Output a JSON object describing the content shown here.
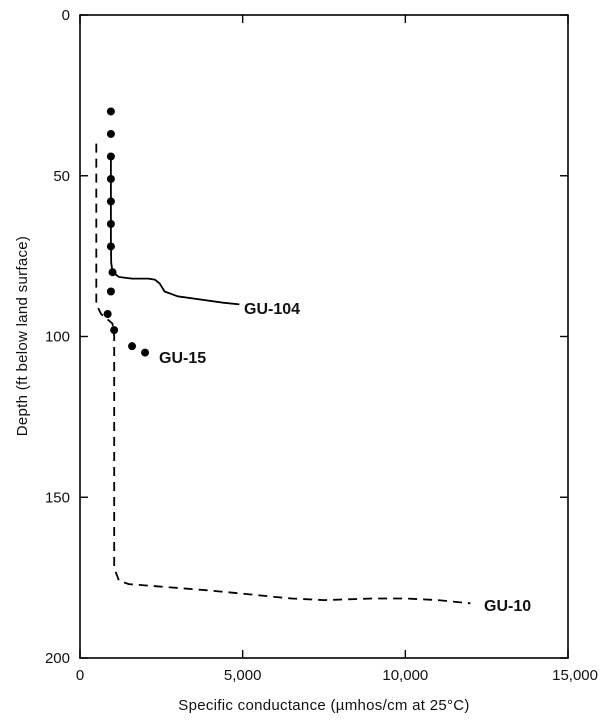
{
  "chart_data": {
    "type": "line",
    "x_axis": {
      "label": "Specific conductance (µmhos/cm at 25°C)",
      "range": [
        0,
        15000
      ],
      "ticks": [
        0,
        5000,
        10000,
        15000
      ],
      "tick_labels": [
        "0",
        "5,000",
        "10,000",
        "15,000"
      ],
      "position": "bottom"
    },
    "y_axis": {
      "label": "Depth (ft below land surface)",
      "range": [
        0,
        200
      ],
      "inverted": true,
      "ticks": [
        0,
        50,
        100,
        150,
        200
      ],
      "tick_labels": [
        "0",
        "50",
        "100",
        "150",
        "200"
      ]
    },
    "grid": false,
    "legend": "none",
    "series": [
      {
        "name": "GU-104",
        "style": "solid",
        "color": "#000000",
        "points": [
          [
            950,
            43
          ],
          [
            950,
            50
          ],
          [
            950,
            60
          ],
          [
            950,
            70
          ],
          [
            960,
            77
          ],
          [
            1000,
            80
          ],
          [
            1200,
            81.5
          ],
          [
            1600,
            82
          ],
          [
            2100,
            82
          ],
          [
            2300,
            82.3
          ],
          [
            2450,
            83.5
          ],
          [
            2600,
            86
          ],
          [
            3000,
            87.5
          ],
          [
            3700,
            88.5
          ],
          [
            4400,
            89.5
          ],
          [
            4900,
            90
          ]
        ]
      },
      {
        "name": "GU-15",
        "style": "points",
        "color": "#000000",
        "points": [
          [
            950,
            30
          ],
          [
            950,
            37
          ],
          [
            950,
            44
          ],
          [
            950,
            51
          ],
          [
            950,
            58
          ],
          [
            950,
            65
          ],
          [
            950,
            72
          ],
          [
            1000,
            80
          ],
          [
            950,
            86
          ],
          [
            850,
            93
          ],
          [
            1050,
            98
          ],
          [
            1600,
            103
          ],
          [
            2000,
            105
          ]
        ]
      },
      {
        "name": "GU-10",
        "style": "dashed",
        "color": "#000000",
        "points": [
          [
            500,
            40
          ],
          [
            500,
            60
          ],
          [
            500,
            80
          ],
          [
            500,
            90
          ],
          [
            650,
            93
          ],
          [
            1000,
            96
          ],
          [
            1050,
            100
          ],
          [
            1050,
            130
          ],
          [
            1050,
            160
          ],
          [
            1050,
            172
          ],
          [
            1200,
            176
          ],
          [
            1500,
            177
          ],
          [
            4000,
            179
          ],
          [
            6500,
            181.5
          ],
          [
            7500,
            182
          ],
          [
            9000,
            181.5
          ],
          [
            10000,
            181.5
          ],
          [
            11000,
            182
          ],
          [
            12000,
            183
          ]
        ]
      }
    ],
    "series_labels": [
      "GU-104",
      "GU-15",
      "GU-10"
    ]
  }
}
